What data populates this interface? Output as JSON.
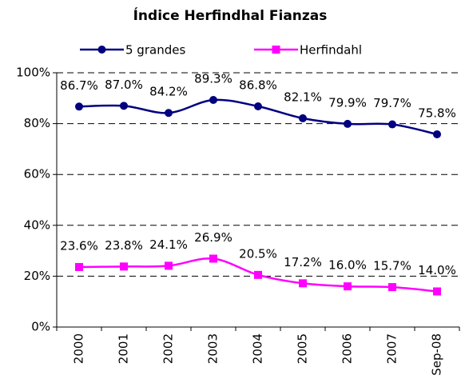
{
  "chart_data": {
    "type": "line",
    "title": "Índice Herfindhal Fianzas",
    "categories": [
      "2000",
      "2001",
      "2002",
      "2003",
      "2004",
      "2005",
      "2006",
      "2007",
      "Sep-08"
    ],
    "series": [
      {
        "name": "5 grandes",
        "color": "#000080",
        "marker": "circle",
        "values": [
          86.7,
          87.0,
          84.2,
          89.3,
          86.8,
          82.1,
          79.9,
          79.7,
          75.8
        ],
        "value_labels": [
          "86.7%",
          "87.0%",
          "84.2%",
          "89.3%",
          "86.8%",
          "82.1%",
          "79.9%",
          "79.7%",
          "75.8%"
        ]
      },
      {
        "name": "Herfindahl",
        "color": "#ff00ff",
        "marker": "square",
        "values": [
          23.6,
          23.8,
          24.1,
          26.9,
          20.5,
          17.2,
          16.0,
          15.7,
          14.0
        ],
        "value_labels": [
          "23.6%",
          "23.8%",
          "24.1%",
          "26.9%",
          "20.5%",
          "17.2%",
          "16.0%",
          "15.7%",
          "14.0%"
        ]
      }
    ],
    "ylim": [
      0,
      100
    ],
    "yticks": [
      {
        "value": 0,
        "label": "0%"
      },
      {
        "value": 20,
        "label": "20%"
      },
      {
        "value": 40,
        "label": "40%"
      },
      {
        "value": 60,
        "label": "60%"
      },
      {
        "value": 80,
        "label": "80%"
      },
      {
        "value": 100,
        "label": "100%"
      }
    ],
    "grid": true,
    "legend": "top"
  }
}
